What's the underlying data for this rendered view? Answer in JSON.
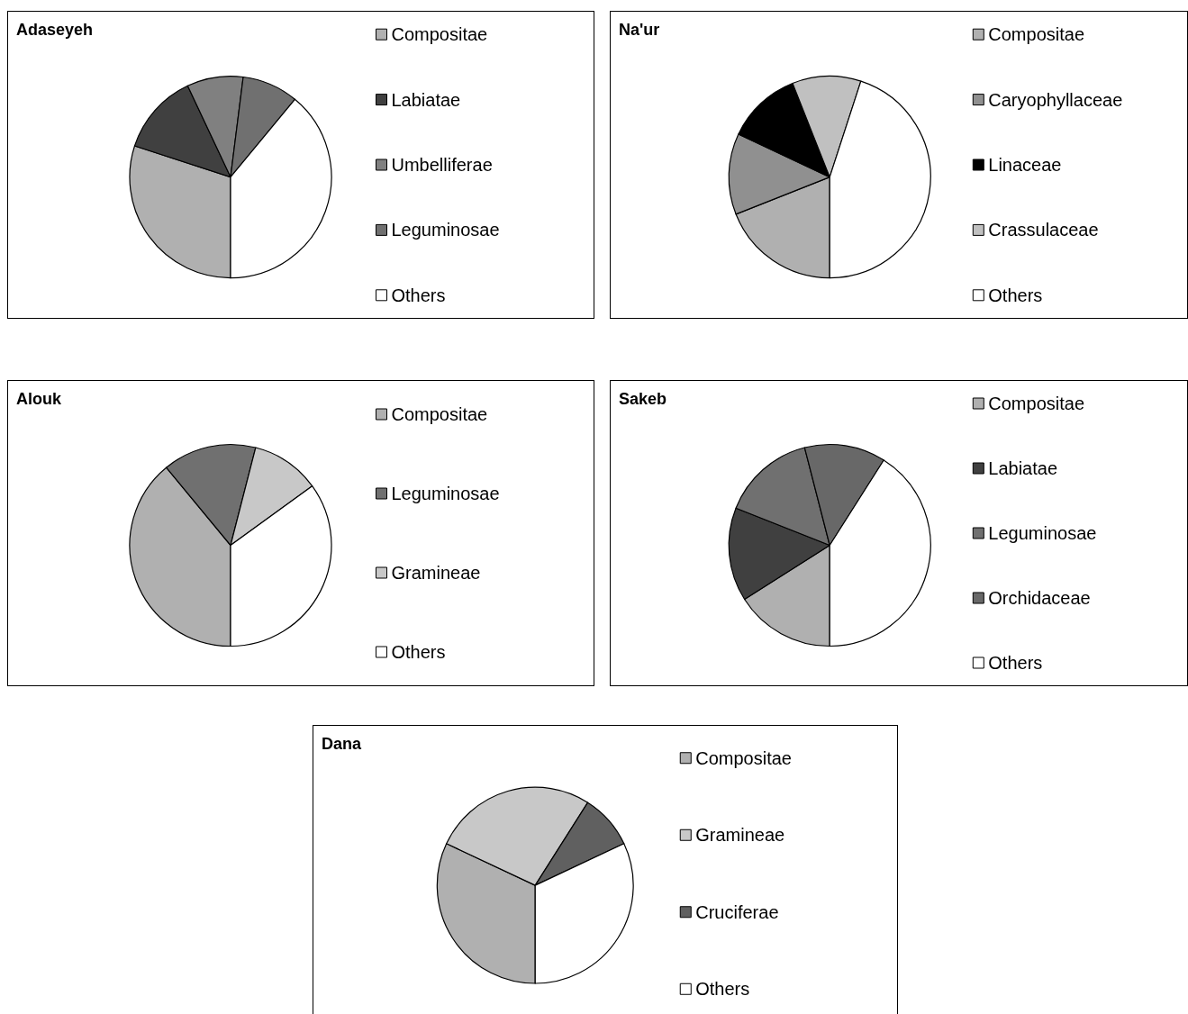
{
  "chart_data": [
    {
      "type": "pie",
      "title": "Adaseyeh",
      "categories": [
        "Compositae",
        "Labiatae",
        "Umbelliferae",
        "Leguminosae",
        "Others"
      ],
      "values": [
        30,
        13,
        9,
        9,
        39
      ],
      "colors": [
        "#b0b0b0",
        "#404040",
        "#808080",
        "#707070",
        "#ffffff"
      ],
      "legend": "right"
    },
    {
      "type": "pie",
      "title": "Na'ur",
      "categories": [
        "Compositae",
        "Caryophyllaceae",
        "Linaceae",
        "Crassulaceae",
        "Others"
      ],
      "values": [
        19,
        13,
        12,
        11,
        45
      ],
      "colors": [
        "#b0b0b0",
        "#909090",
        "#000000",
        "#c0c0c0",
        "#ffffff"
      ],
      "legend": "right"
    },
    {
      "type": "pie",
      "title": "Alouk",
      "categories": [
        "Compositae",
        "Leguminosae",
        "Gramineae",
        "Others"
      ],
      "values": [
        39,
        15,
        11,
        35
      ],
      "colors": [
        "#b0b0b0",
        "#707070",
        "#c8c8c8",
        "#ffffff"
      ],
      "legend": "right"
    },
    {
      "type": "pie",
      "title": "Sakeb",
      "categories": [
        "Compositae",
        "Labiatae",
        "Leguminosae",
        "Orchidaceae",
        "Others"
      ],
      "values": [
        16,
        15,
        15,
        13,
        41
      ],
      "colors": [
        "#b0b0b0",
        "#404040",
        "#707070",
        "#686868",
        "#ffffff"
      ],
      "legend": "right"
    },
    {
      "type": "pie",
      "title": "Dana",
      "categories": [
        "Compositae",
        "Gramineae",
        "Cruciferae",
        "Others"
      ],
      "values": [
        32,
        27,
        9,
        32
      ],
      "colors": [
        "#b0b0b0",
        "#c8c8c8",
        "#606060",
        "#ffffff"
      ],
      "legend": "right"
    }
  ]
}
